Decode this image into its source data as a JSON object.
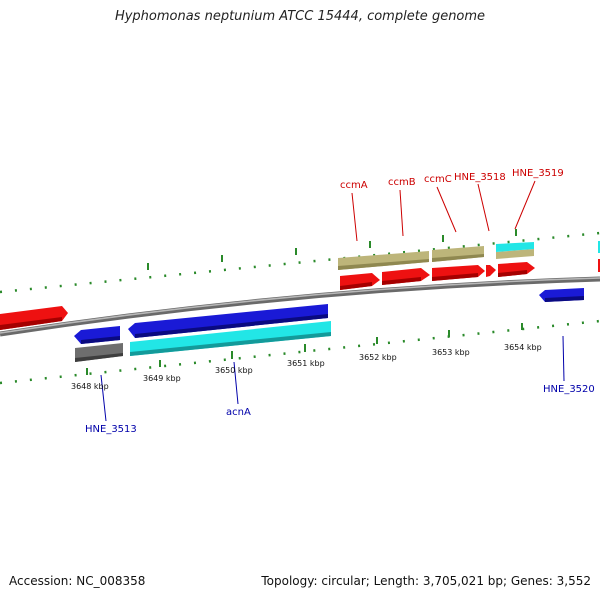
{
  "title": "Hyphomonas neptunium ATCC 15444, complete genome",
  "footer": {
    "accession": "Accession: NC_008358",
    "summary": "Topology: circular; Length: 3,705,021 bp; Genes: 3,552"
  },
  "colors": {
    "forward_cds": "#ee1111",
    "reverse_cds": "#1a1ad6",
    "cog_forward": "#bdb57a",
    "cog_reverse_cyan": "#22e6e6",
    "cog_reverse_gray": "#6e6e6e",
    "backbone": "#888888",
    "ticks": "#2a8a2a",
    "label_forward": "#cc0000",
    "label_reverse": "#0000aa"
  },
  "scale_labels": [
    "3648 kbp",
    "3649 kbp",
    "3650 kbp",
    "3651 kbp",
    "3652 kbp",
    "3653 kbp",
    "3654 kbp"
  ],
  "forward_gene_labels": [
    "ccmA",
    "ccmB",
    "ccmC",
    "HNE_3518",
    "HNE_3519"
  ],
  "reverse_gene_labels": [
    "HNE_3513",
    "acnA",
    "HNE_3520"
  ]
}
